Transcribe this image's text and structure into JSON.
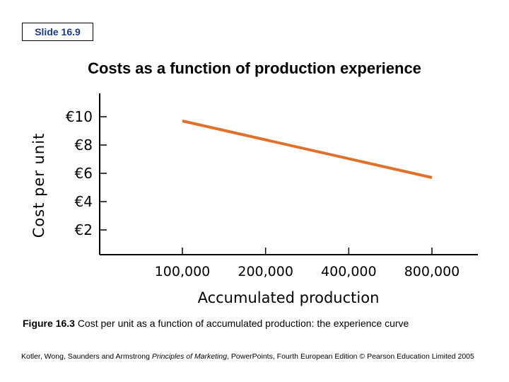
{
  "slide": {
    "label": "Slide 16.9"
  },
  "title": "Costs as a function of production experience",
  "chart_data": {
    "type": "line",
    "title": "",
    "xlabel": "Accumulated production",
    "ylabel": "Cost per unit",
    "categories": [
      "100,000",
      "200,000",
      "400,000",
      "800,000"
    ],
    "yticks": [
      "€2",
      "€4",
      "€6",
      "€8",
      "€10"
    ],
    "ylim": [
      0,
      10
    ],
    "x_scale": "log",
    "series": [
      {
        "x": [
          100000,
          800000
        ],
        "values": [
          9.7,
          5.7
        ],
        "color": "#e0712a"
      }
    ],
    "grid": false
  },
  "caption": {
    "label": "Figure 16.3",
    "text": "Cost per unit as a function of accumulated production: the experience curve"
  },
  "footer": {
    "prefix": "Kotler, Wong, Saunders and Armstrong",
    "book": "Principles of Marketing",
    "suffix": ", PowerPoints, Fourth European Edition © Pearson Education Limited 2005"
  }
}
